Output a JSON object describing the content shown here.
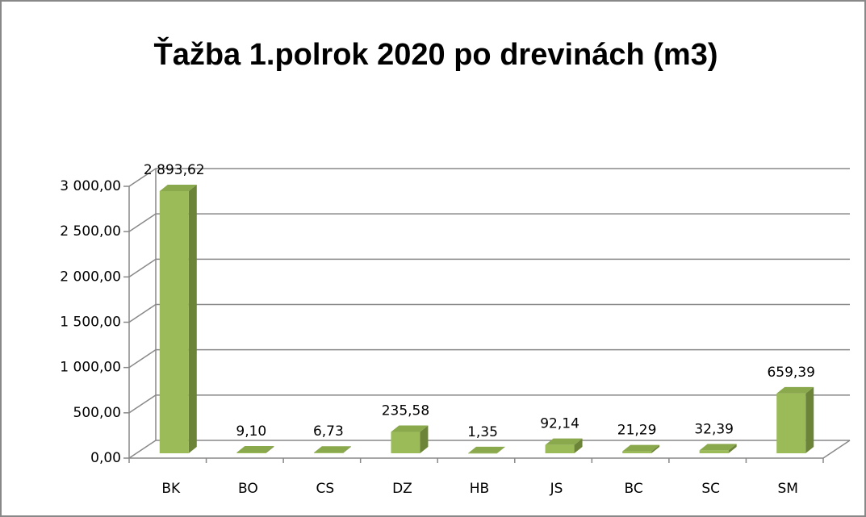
{
  "chart_data": {
    "type": "bar3d",
    "title": "Ťažba 1.polrok 2020 po drevinách (m3)",
    "categories": [
      "BK",
      "BO",
      "CS",
      "DZ",
      "HB",
      "JS",
      "BC",
      "SC",
      "SM"
    ],
    "values": [
      2893.62,
      9.1,
      6.73,
      235.58,
      1.35,
      92.14,
      21.29,
      32.39,
      659.39
    ],
    "value_labels": [
      "2 893,62",
      "9,10",
      "6,73",
      "235,58",
      "1,35",
      "92,14",
      "21,29",
      "32,39",
      "659,39"
    ],
    "color": "#9bbb59",
    "ylim": [
      0,
      3000
    ],
    "yticks": [
      {
        "value": 0,
        "label": "0,00"
      },
      {
        "value": 500,
        "label": "500,00"
      },
      {
        "value": 1000,
        "label": "1 000,00"
      },
      {
        "value": 1500,
        "label": "1 500,00"
      },
      {
        "value": 2000,
        "label": "2 000,00"
      },
      {
        "value": 2500,
        "label": "2 500,00"
      },
      {
        "value": 3000,
        "label": "3 000,00"
      }
    ],
    "grid": true
  }
}
